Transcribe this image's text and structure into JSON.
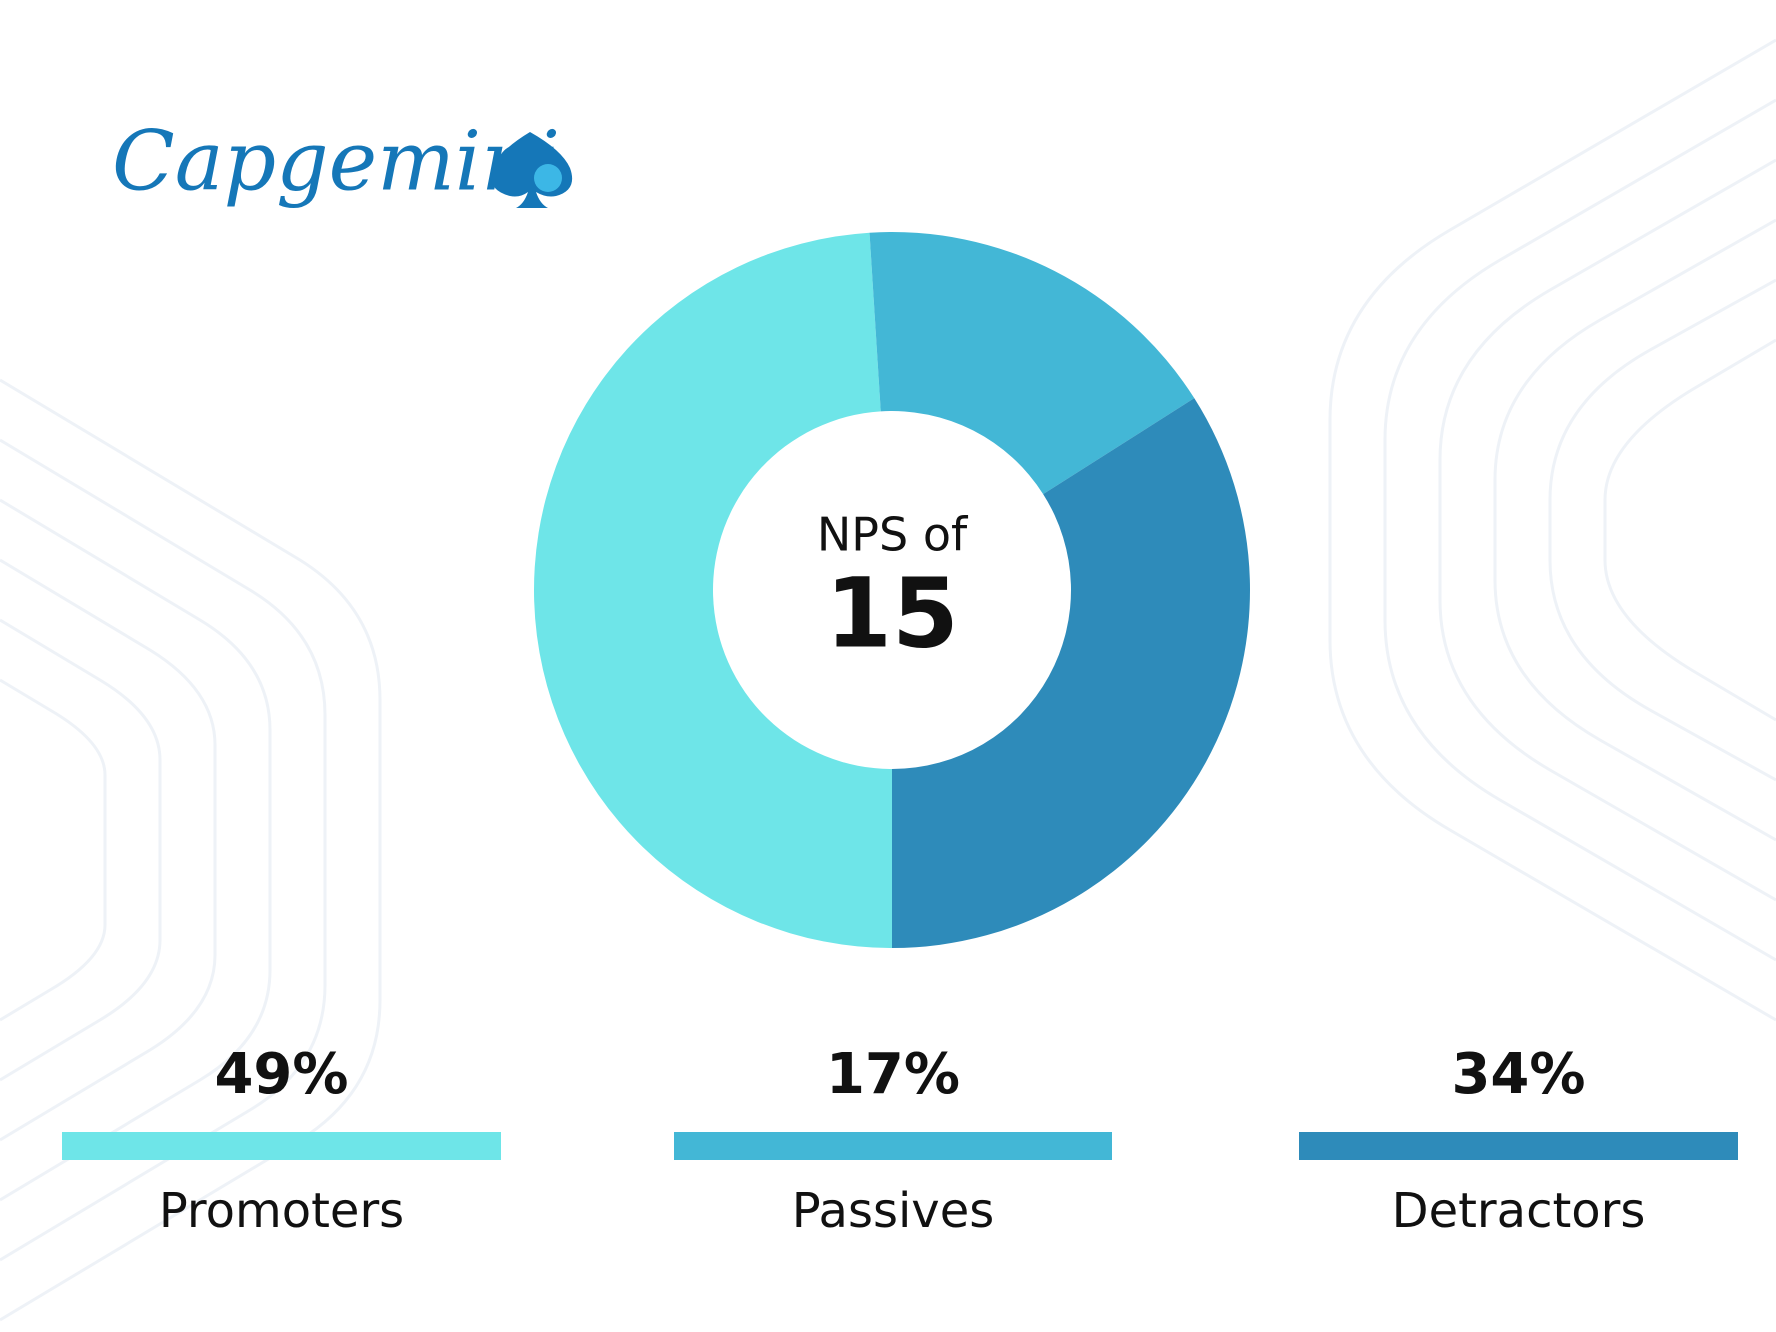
{
  "logo": {
    "text": "Capgemini"
  },
  "chart_data": {
    "type": "donut",
    "center_label": "NPS of",
    "center_value": 15,
    "categories": [
      "Promoters",
      "Passives",
      "Detractors"
    ],
    "values": [
      49,
      17,
      34
    ],
    "value_labels": [
      "49%",
      "17%",
      "34%"
    ],
    "colors": [
      "#6ee5e8",
      "#43b7d6",
      "#2e8bba"
    ]
  }
}
